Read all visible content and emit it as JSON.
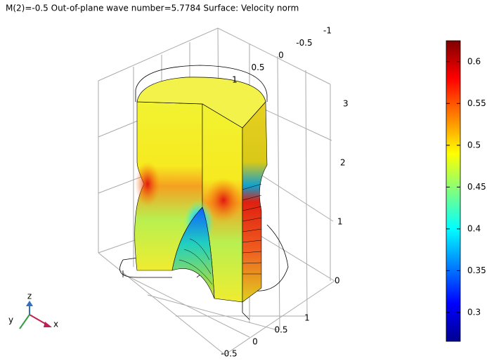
{
  "title": "M(2)=-0.5 Out-of-plane wave number=5.7784  Surface: Velocity norm",
  "colorbar": {
    "range": [
      0.2655,
      0.625
    ],
    "ticks": [
      0.3,
      0.35,
      0.4,
      0.45,
      0.5,
      0.55,
      0.6
    ]
  },
  "axes": {
    "x_ticks": [
      -0.5,
      0,
      0.5,
      1
    ],
    "y_ticks": [
      1,
      0.5,
      0,
      -0.5,
      -1
    ],
    "z_ticks": [
      0,
      1,
      2,
      3
    ]
  },
  "triad": {
    "x": "x",
    "y": "y",
    "z": "z"
  }
}
